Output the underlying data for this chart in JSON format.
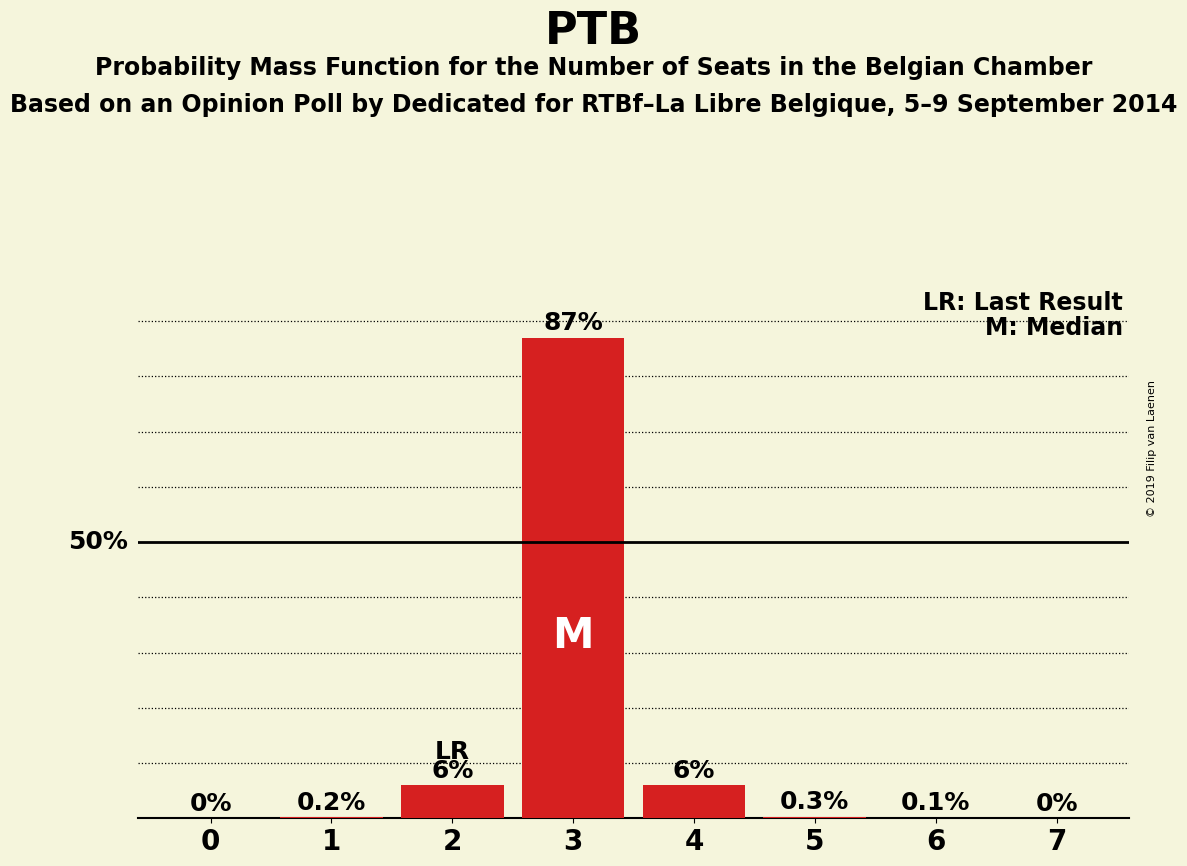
{
  "title": "PTB",
  "subtitle1": "Probability Mass Function for the Number of Seats in the Belgian Chamber",
  "subtitle2": "Based on an Opinion Poll by Dedicated for RTBf–La Libre Belgique, 5–9 September 2014",
  "copyright": "© 2019 Filip van Laenen",
  "seats": [
    0,
    1,
    2,
    3,
    4,
    5,
    6,
    7
  ],
  "probabilities": [
    0.0,
    0.002,
    0.06,
    0.87,
    0.06,
    0.003,
    0.001,
    0.0
  ],
  "bar_labels": [
    "0%",
    "0.2%",
    "6%",
    "87%",
    "6%",
    "0.3%",
    "0.1%",
    "0%"
  ],
  "bar_color": "#d62020",
  "background_color": "#f5f5dc",
  "median_seat": 3,
  "last_result_seat": 2,
  "ylim": [
    0,
    0.97
  ],
  "legend_lr": "LR: Last Result",
  "legend_m": "M: Median",
  "ylabel_50": "50%",
  "grid_lines_y": [
    0.1,
    0.2,
    0.3,
    0.4,
    0.5,
    0.6,
    0.7,
    0.8,
    0.9
  ],
  "title_fontsize": 32,
  "subtitle_fontsize": 17,
  "bar_label_fontsize": 18,
  "axis_label_fontsize": 20,
  "legend_fontsize": 17
}
